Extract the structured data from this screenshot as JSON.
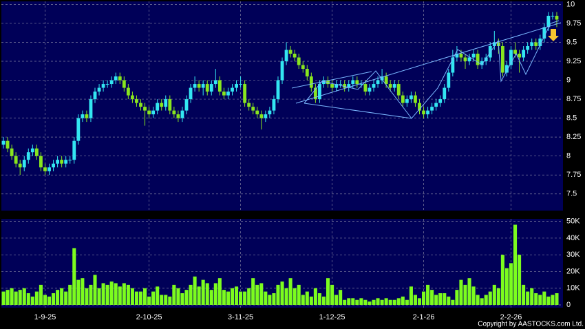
{
  "chart_data": {
    "type": "candlestick",
    "up_color": "#33e6f2",
    "down_color": "#88e61e",
    "volume_color": "#7cfc1e",
    "grid": true,
    "ylim": [
      7.28,
      10.04
    ],
    "yticks": [
      10,
      9.75,
      9.5,
      9.25,
      9,
      8.75,
      8.5,
      8.25,
      8,
      7.75,
      7.5
    ],
    "volume_ylim": [
      0,
      51500
    ],
    "volume_ticks": [
      {
        "value": 50000,
        "label": "50K"
      },
      {
        "value": 40000,
        "label": "40K"
      },
      {
        "value": 30000,
        "label": "30K"
      },
      {
        "value": 20000,
        "label": "20K"
      },
      {
        "value": 10000,
        "label": "10K"
      },
      0
    ],
    "categories": [
      null,
      null,
      null,
      null,
      null,
      null,
      null,
      null,
      null,
      null,
      "1-9-25",
      null,
      null,
      null,
      null,
      null,
      null,
      null,
      null,
      null,
      null,
      null,
      null,
      null,
      null,
      null,
      null,
      null,
      null,
      null,
      null,
      null,
      null,
      null,
      null,
      "2-10-25",
      null,
      null,
      null,
      null,
      null,
      null,
      null,
      null,
      null,
      null,
      null,
      null,
      null,
      null,
      null,
      null,
      null,
      null,
      null,
      null,
      null,
      "3-11-25",
      null,
      null,
      null,
      null,
      null,
      null,
      null,
      null,
      null,
      null,
      null,
      null,
      null,
      null,
      null,
      null,
      null,
      null,
      null,
      null,
      null,
      "1-12-25",
      null,
      null,
      null,
      null,
      null,
      null,
      null,
      null,
      null,
      null,
      null,
      null,
      null,
      null,
      null,
      null,
      null,
      null,
      null,
      null,
      null,
      "2-1-26",
      null,
      null,
      null,
      null,
      null,
      null,
      null,
      null,
      null,
      null,
      null,
      null,
      null,
      null,
      null,
      null,
      null,
      null,
      null,
      null,
      "2-2-26",
      null,
      null,
      null,
      null,
      null,
      null,
      null,
      null,
      null,
      null,
      null
    ],
    "candles": [
      [
        8.15,
        8.25,
        8.1,
        8.2
      ],
      [
        8.2,
        8.25,
        8.05,
        8.1
      ],
      [
        8.1,
        8.15,
        7.95,
        8.0
      ],
      [
        8.0,
        8.05,
        7.85,
        7.9
      ],
      [
        7.9,
        7.95,
        7.75,
        7.85
      ],
      [
        7.85,
        8.0,
        7.8,
        7.95
      ],
      [
        7.95,
        8.1,
        7.9,
        8.05
      ],
      [
        8.05,
        8.15,
        8.0,
        8.1
      ],
      [
        8.1,
        8.15,
        7.95,
        8.0
      ],
      [
        8.0,
        8.05,
        7.8,
        7.85
      ],
      [
        7.85,
        7.9,
        7.75,
        7.8
      ],
      [
        7.8,
        7.9,
        7.75,
        7.85
      ],
      [
        7.85,
        7.95,
        7.8,
        7.9
      ],
      [
        7.9,
        8.0,
        7.85,
        7.95
      ],
      [
        7.95,
        8.0,
        7.85,
        7.9
      ],
      [
        7.9,
        8.0,
        7.85,
        7.95
      ],
      [
        7.95,
        8.0,
        7.9,
        7.95
      ],
      [
        7.95,
        8.25,
        7.9,
        8.2
      ],
      [
        8.2,
        8.55,
        8.15,
        8.5
      ],
      [
        8.5,
        8.6,
        8.45,
        8.55
      ],
      [
        8.55,
        8.6,
        8.45,
        8.5
      ],
      [
        8.5,
        8.8,
        8.45,
        8.75
      ],
      [
        8.75,
        8.9,
        8.7,
        8.85
      ],
      [
        8.85,
        8.95,
        8.8,
        8.9
      ],
      [
        8.9,
        9.0,
        8.85,
        8.95
      ],
      [
        8.95,
        9.0,
        8.9,
        8.95
      ],
      [
        8.95,
        9.05,
        8.9,
        9.0
      ],
      [
        9.0,
        9.1,
        8.95,
        9.05
      ],
      [
        9.05,
        9.1,
        8.95,
        9.0
      ],
      [
        9.0,
        9.05,
        8.85,
        8.9
      ],
      [
        8.9,
        8.95,
        8.75,
        8.8
      ],
      [
        8.8,
        8.85,
        8.7,
        8.75
      ],
      [
        8.75,
        8.8,
        8.65,
        8.7
      ],
      [
        8.7,
        8.75,
        8.6,
        8.65
      ],
      [
        8.65,
        8.7,
        8.4,
        8.6
      ],
      [
        8.6,
        8.65,
        8.5,
        8.55
      ],
      [
        8.55,
        8.65,
        8.5,
        8.6
      ],
      [
        8.6,
        8.75,
        8.55,
        8.7
      ],
      [
        8.7,
        8.75,
        8.6,
        8.65
      ],
      [
        8.65,
        8.8,
        8.6,
        8.75
      ],
      [
        8.75,
        8.8,
        8.55,
        8.6
      ],
      [
        8.6,
        8.65,
        8.5,
        8.55
      ],
      [
        8.55,
        8.6,
        8.45,
        8.5
      ],
      [
        8.5,
        8.65,
        8.45,
        8.6
      ],
      [
        8.6,
        8.8,
        8.55,
        8.75
      ],
      [
        8.75,
        8.95,
        8.7,
        8.9
      ],
      [
        8.9,
        9.05,
        8.85,
        8.95
      ],
      [
        8.95,
        9.0,
        8.85,
        8.9
      ],
      [
        8.9,
        9.0,
        8.8,
        8.95
      ],
      [
        8.95,
        9.0,
        8.8,
        8.85
      ],
      [
        8.85,
        9.0,
        8.8,
        8.95
      ],
      [
        8.95,
        9.15,
        8.9,
        9.0
      ],
      [
        9.0,
        9.05,
        8.8,
        8.85
      ],
      [
        8.85,
        8.9,
        8.75,
        8.8
      ],
      [
        8.8,
        8.9,
        8.75,
        8.85
      ],
      [
        8.85,
        8.95,
        8.8,
        8.9
      ],
      [
        8.9,
        9.0,
        8.85,
        8.95
      ],
      [
        8.95,
        9.05,
        8.9,
        8.95
      ],
      [
        8.95,
        9.0,
        8.65,
        8.7
      ],
      [
        8.7,
        8.75,
        8.6,
        8.65
      ],
      [
        8.65,
        8.7,
        8.55,
        8.6
      ],
      [
        8.6,
        8.65,
        8.5,
        8.55
      ],
      [
        8.55,
        8.6,
        8.35,
        8.5
      ],
      [
        8.5,
        8.6,
        8.45,
        8.55
      ],
      [
        8.55,
        8.65,
        8.5,
        8.6
      ],
      [
        8.6,
        8.8,
        8.55,
        8.75
      ],
      [
        8.75,
        9.05,
        8.7,
        9.0
      ],
      [
        9.0,
        9.3,
        8.95,
        9.25
      ],
      [
        9.25,
        9.5,
        9.2,
        9.4
      ],
      [
        9.4,
        9.45,
        9.3,
        9.35
      ],
      [
        9.35,
        9.4,
        9.25,
        9.3
      ],
      [
        9.3,
        9.35,
        9.15,
        9.2
      ],
      [
        9.2,
        9.25,
        9.1,
        9.15
      ],
      [
        9.15,
        9.2,
        9.0,
        9.05
      ],
      [
        9.05,
        9.1,
        8.85,
        8.9
      ],
      [
        8.9,
        8.95,
        8.7,
        8.75
      ],
      [
        8.75,
        9.0,
        8.7,
        8.95
      ],
      [
        8.95,
        9.05,
        8.9,
        9.0
      ],
      [
        9.0,
        9.05,
        8.9,
        8.95
      ],
      [
        8.95,
        9.0,
        8.85,
        8.9
      ],
      [
        8.9,
        9.0,
        8.85,
        8.95
      ],
      [
        8.95,
        9.0,
        8.9,
        8.95
      ],
      [
        8.95,
        9.0,
        8.85,
        8.9
      ],
      [
        8.9,
        9.0,
        8.85,
        8.95
      ],
      [
        8.95,
        9.05,
        8.9,
        9.0
      ],
      [
        9.0,
        9.05,
        8.9,
        8.95
      ],
      [
        8.95,
        9.0,
        8.9,
        8.95
      ],
      [
        8.95,
        9.0,
        8.8,
        8.85
      ],
      [
        8.85,
        8.95,
        8.8,
        8.9
      ],
      [
        8.9,
        9.0,
        8.85,
        8.95
      ],
      [
        8.95,
        9.05,
        8.9,
        9.0
      ],
      [
        9.0,
        9.15,
        8.95,
        9.05
      ],
      [
        9.05,
        9.1,
        8.9,
        8.95
      ],
      [
        8.95,
        9.0,
        8.85,
        8.9
      ],
      [
        8.9,
        9.0,
        8.85,
        8.95
      ],
      [
        8.95,
        9.0,
        8.75,
        8.8
      ],
      [
        8.8,
        8.85,
        8.65,
        8.7
      ],
      [
        8.7,
        8.8,
        8.65,
        8.75
      ],
      [
        8.75,
        8.85,
        8.7,
        8.8
      ],
      [
        8.8,
        8.85,
        8.65,
        8.7
      ],
      [
        8.7,
        8.75,
        8.55,
        8.6
      ],
      [
        8.6,
        8.65,
        8.5,
        8.55
      ],
      [
        8.55,
        8.65,
        8.5,
        8.6
      ],
      [
        8.6,
        8.7,
        8.55,
        8.65
      ],
      [
        8.65,
        8.75,
        8.6,
        8.7
      ],
      [
        8.7,
        8.8,
        8.65,
        8.75
      ],
      [
        8.75,
        8.95,
        8.7,
        8.9
      ],
      [
        8.9,
        9.15,
        8.85,
        9.1
      ],
      [
        9.1,
        9.4,
        9.05,
        9.3
      ],
      [
        9.3,
        9.45,
        9.25,
        9.35
      ],
      [
        9.35,
        9.4,
        9.25,
        9.3
      ],
      [
        9.3,
        9.35,
        9.15,
        9.25
      ],
      [
        9.25,
        9.35,
        9.2,
        9.3
      ],
      [
        9.3,
        9.4,
        9.25,
        9.35
      ],
      [
        9.35,
        9.4,
        9.15,
        9.2
      ],
      [
        9.2,
        9.3,
        9.15,
        9.25
      ],
      [
        9.25,
        9.35,
        9.2,
        9.3
      ],
      [
        9.3,
        9.5,
        9.25,
        9.45
      ],
      [
        9.45,
        9.65,
        9.4,
        9.5
      ],
      [
        9.5,
        9.55,
        9.35,
        9.45
      ],
      [
        9.45,
        9.5,
        9.05,
        9.1
      ],
      [
        9.1,
        9.25,
        9.05,
        9.2
      ],
      [
        9.2,
        9.45,
        9.15,
        9.4
      ],
      [
        9.4,
        9.5,
        9.3,
        9.35
      ],
      [
        9.35,
        9.4,
        9.1,
        9.3
      ],
      [
        9.3,
        9.45,
        9.25,
        9.4
      ],
      [
        9.4,
        9.5,
        9.35,
        9.45
      ],
      [
        9.45,
        9.55,
        9.4,
        9.5
      ],
      [
        9.5,
        9.55,
        9.4,
        9.45
      ],
      [
        9.45,
        9.6,
        9.4,
        9.55
      ],
      [
        9.55,
        9.75,
        9.5,
        9.7
      ],
      [
        9.7,
        9.9,
        9.65,
        9.85
      ],
      [
        9.85,
        9.9,
        9.8,
        9.85
      ],
      [
        9.85,
        9.9,
        9.7,
        9.8
      ]
    ],
    "volume": [
      8000,
      9000,
      10000,
      8000,
      9000,
      10000,
      7000,
      5000,
      8000,
      12000,
      6000,
      5000,
      7000,
      9000,
      10000,
      8000,
      12000,
      34000,
      15000,
      16000,
      10000,
      12000,
      18000,
      10000,
      13000,
      12000,
      14000,
      13000,
      11000,
      13000,
      12000,
      10000,
      8000,
      8000,
      10000,
      5000,
      8000,
      11000,
      6000,
      6000,
      5000,
      12000,
      10000,
      7000,
      9000,
      12000,
      17000,
      11000,
      15000,
      13000,
      9000,
      13000,
      16000,
      9000,
      8000,
      10000,
      11000,
      8000,
      8000,
      10000,
      16000,
      12000,
      13000,
      8000,
      6000,
      7000,
      12000,
      14000,
      10000,
      16000,
      10000,
      12000,
      6000,
      8000,
      5000,
      10000,
      7000,
      5000,
      16000,
      12000,
      6000,
      9000,
      3000,
      4000,
      4000,
      3000,
      4000,
      3000,
      2000,
      3000,
      4000,
      3000,
      4000,
      3000,
      3000,
      4000,
      5000,
      3000,
      11000,
      6000,
      4000,
      8000,
      12000,
      9000,
      6000,
      7000,
      7000,
      5000,
      3000,
      9000,
      15000,
      12000,
      16000,
      11000,
      6000,
      4000,
      6000,
      8000,
      12000,
      10000,
      30000,
      22000,
      25000,
      48000,
      30000,
      12000,
      8000,
      10000,
      7000,
      6000,
      8000,
      5000,
      6000,
      7000
    ],
    "copyright": "Copyright by AASTOCKS.com Ltd."
  }
}
